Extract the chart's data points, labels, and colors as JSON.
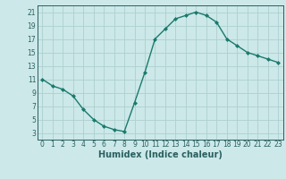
{
  "x": [
    0,
    1,
    2,
    3,
    4,
    5,
    6,
    7,
    8,
    9,
    10,
    11,
    12,
    13,
    14,
    15,
    16,
    17,
    18,
    19,
    20,
    21,
    22,
    23
  ],
  "y": [
    11,
    10,
    9.5,
    8.5,
    6.5,
    5,
    4,
    3.5,
    3.2,
    7.5,
    12,
    17,
    18.5,
    20,
    20.5,
    21,
    20.5,
    19.5,
    17,
    16,
    15,
    14.5,
    14,
    13.5
  ],
  "line_color": "#1a7a6e",
  "marker": "D",
  "marker_size": 2.0,
  "bg_color": "#cce8e8",
  "grid_color": "#aed0d0",
  "xlabel": "Humidex (Indice chaleur)",
  "xlim": [
    -0.5,
    23.5
  ],
  "ylim": [
    2,
    22
  ],
  "yticks": [
    3,
    5,
    7,
    9,
    11,
    13,
    15,
    17,
    19,
    21
  ],
  "xticks": [
    0,
    1,
    2,
    3,
    4,
    5,
    6,
    7,
    8,
    9,
    10,
    11,
    12,
    13,
    14,
    15,
    16,
    17,
    18,
    19,
    20,
    21,
    22,
    23
  ],
  "tick_fontsize": 5.5,
  "xlabel_fontsize": 7.0,
  "linewidth": 1.0
}
